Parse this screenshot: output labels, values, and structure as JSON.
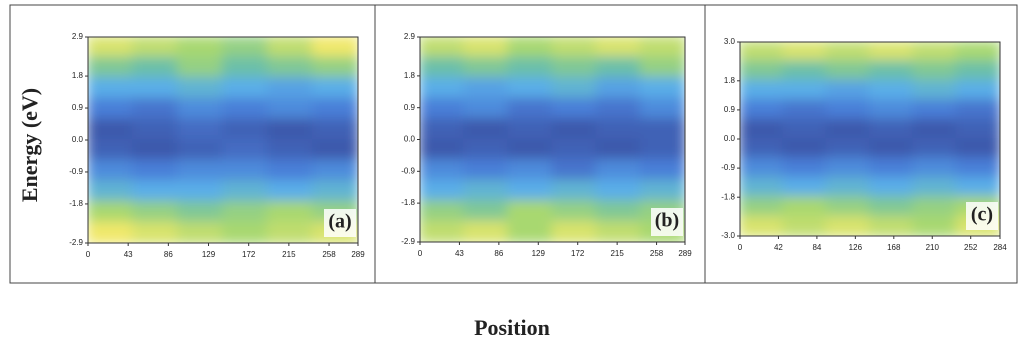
{
  "y_label": "Energy (eV)",
  "x_label": "Position",
  "chart_data": [
    {
      "type": "heatmap",
      "label": "(a)",
      "xlim": [
        0,
        289
      ],
      "xticks": [
        0,
        43,
        86,
        129,
        172,
        215,
        258,
        289
      ],
      "ylim": [
        -2.9,
        2.9
      ],
      "yticks": [
        2.9,
        1.8,
        0.9,
        {
          "value": 0,
          "label": "0.0"
        },
        -0.9,
        -1.8,
        -2.9
      ],
      "z": [
        [
          0.85,
          0.8,
          0.75,
          0.7,
          0.8,
          0.9
        ],
        [
          0.65,
          0.6,
          0.7,
          0.6,
          0.65,
          0.7
        ],
        [
          0.45,
          0.45,
          0.5,
          0.45,
          0.4,
          0.45
        ],
        [
          0.25,
          0.2,
          0.3,
          0.25,
          0.3,
          0.25
        ],
        [
          0.05,
          0.1,
          0.15,
          0.1,
          0.05,
          0.1
        ],
        [
          0.1,
          0.05,
          0.1,
          0.15,
          0.1,
          0.05
        ],
        [
          0.3,
          0.25,
          0.3,
          0.3,
          0.25,
          0.3
        ],
        [
          0.5,
          0.45,
          0.45,
          0.5,
          0.45,
          0.5
        ],
        [
          0.75,
          0.7,
          0.65,
          0.7,
          0.75,
          0.7
        ],
        [
          0.9,
          0.85,
          0.8,
          0.75,
          0.8,
          0.85
        ]
      ]
    },
    {
      "type": "heatmap",
      "label": "(b)",
      "xlim": [
        0,
        289
      ],
      "xticks": [
        0,
        43,
        86,
        129,
        172,
        215,
        258,
        289
      ],
      "ylim": [
        -2.9,
        2.9
      ],
      "yticks": [
        2.9,
        1.8,
        0.9,
        {
          "value": 0,
          "label": "0.0"
        },
        -0.9,
        -1.8,
        -2.9
      ],
      "z": [
        [
          0.8,
          0.85,
          0.75,
          0.8,
          0.85,
          0.8
        ],
        [
          0.6,
          0.65,
          0.6,
          0.65,
          0.6,
          0.7
        ],
        [
          0.45,
          0.4,
          0.45,
          0.5,
          0.4,
          0.45
        ],
        [
          0.25,
          0.3,
          0.2,
          0.25,
          0.2,
          0.3
        ],
        [
          0.1,
          0.05,
          0.1,
          0.05,
          0.1,
          0.1
        ],
        [
          0.05,
          0.1,
          0.05,
          0.1,
          0.05,
          0.1
        ],
        [
          0.3,
          0.25,
          0.3,
          0.2,
          0.3,
          0.25
        ],
        [
          0.45,
          0.5,
          0.45,
          0.5,
          0.45,
          0.5
        ],
        [
          0.7,
          0.65,
          0.75,
          0.7,
          0.65,
          0.7
        ],
        [
          0.8,
          0.85,
          0.75,
          0.85,
          0.8,
          0.75
        ]
      ]
    },
    {
      "type": "heatmap",
      "label": "(c)",
      "xlim": [
        0,
        284
      ],
      "xticks": [
        0,
        42,
        84,
        126,
        168,
        210,
        252,
        284
      ],
      "ylim": [
        -3,
        3
      ],
      "yticks": [
        {
          "value": 3,
          "label": "3.0"
        },
        1.8,
        0.9,
        {
          "value": 0,
          "label": "0.0"
        },
        -0.9,
        -1.8,
        {
          "value": -3,
          "label": "-3.0"
        }
      ],
      "z": [
        [
          0.8,
          0.85,
          0.8,
          0.85,
          0.8,
          0.75
        ],
        [
          0.65,
          0.6,
          0.65,
          0.6,
          0.65,
          0.6
        ],
        [
          0.45,
          0.45,
          0.4,
          0.45,
          0.5,
          0.45
        ],
        [
          0.25,
          0.2,
          0.25,
          0.3,
          0.25,
          0.2
        ],
        [
          0.05,
          0.1,
          0.05,
          0.1,
          0.05,
          0.1
        ],
        [
          0.1,
          0.05,
          0.1,
          0.05,
          0.1,
          0.05
        ],
        [
          0.3,
          0.25,
          0.3,
          0.25,
          0.3,
          0.25
        ],
        [
          0.5,
          0.45,
          0.5,
          0.45,
          0.5,
          0.45
        ],
        [
          0.7,
          0.75,
          0.7,
          0.65,
          0.7,
          0.75
        ],
        [
          0.85,
          0.8,
          0.85,
          0.8,
          0.75,
          0.85
        ]
      ]
    }
  ]
}
